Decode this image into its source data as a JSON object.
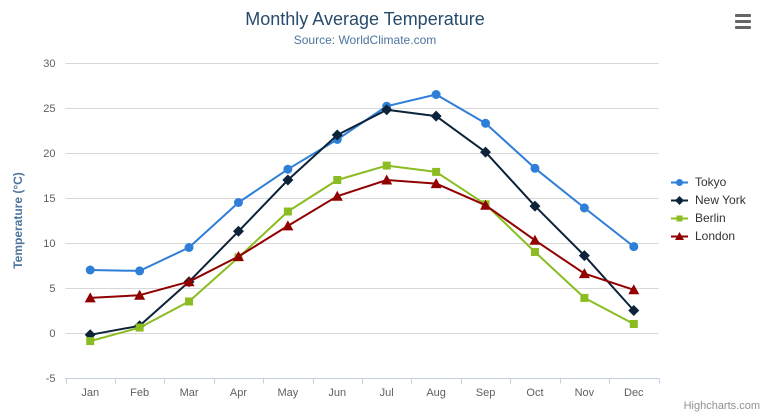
{
  "credits_label": "Highcharts.com",
  "icons": {
    "context_menu": "hamburger"
  },
  "colors": {
    "grid": "#d8d8d8",
    "axis_line": "#c0d0e0",
    "tick_label": "#606060",
    "title": "#274b6d",
    "subtitle": "#4d759e",
    "axis_title": "#4d759e",
    "legend_text": "#333333",
    "credits": "#909090"
  },
  "chart_data": {
    "type": "line",
    "title": "Monthly Average Temperature",
    "subtitle": "Source: WorldClimate.com",
    "xlabel": "",
    "ylabel": "Temperature (°C)",
    "ylim": [
      -5,
      30
    ],
    "yticks": [
      -5,
      0,
      5,
      10,
      15,
      20,
      25,
      30
    ],
    "grid": true,
    "legend_position": "right",
    "categories": [
      "Jan",
      "Feb",
      "Mar",
      "Apr",
      "May",
      "Jun",
      "Jul",
      "Aug",
      "Sep",
      "Oct",
      "Nov",
      "Dec"
    ],
    "series": [
      {
        "name": "Tokyo",
        "color": "#2f7ed8",
        "marker": "circle",
        "values": [
          7.0,
          6.9,
          9.5,
          14.5,
          18.2,
          21.5,
          25.2,
          26.5,
          23.3,
          18.3,
          13.9,
          9.6
        ]
      },
      {
        "name": "New York",
        "color": "#0d233a",
        "marker": "diamond",
        "values": [
          -0.2,
          0.8,
          5.7,
          11.3,
          17.0,
          22.0,
          24.8,
          24.1,
          20.1,
          14.1,
          8.6,
          2.5
        ]
      },
      {
        "name": "Berlin",
        "color": "#8bbc21",
        "marker": "square",
        "values": [
          -0.9,
          0.6,
          3.5,
          8.4,
          13.5,
          17.0,
          18.6,
          17.9,
          14.3,
          9.0,
          3.9,
          1.0
        ]
      },
      {
        "name": "London",
        "color": "#910000",
        "marker": "triangle",
        "values": [
          3.9,
          4.2,
          5.7,
          8.5,
          11.9,
          15.2,
          17.0,
          16.6,
          14.2,
          10.3,
          6.6,
          4.8
        ]
      }
    ]
  }
}
